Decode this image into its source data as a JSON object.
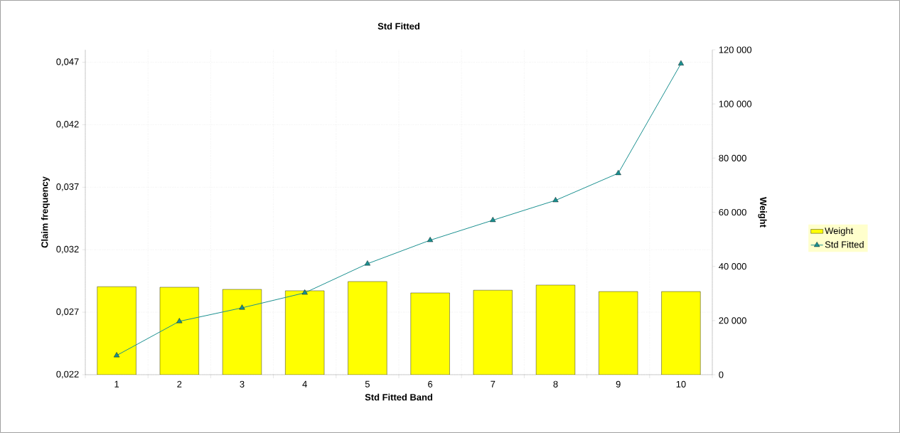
{
  "chart_data": {
    "type": "bar",
    "title": "Std Fitted",
    "xlabel": "Std Fitted Band",
    "ylabel": "Claim frequency",
    "y2label": "Weight",
    "categories": [
      "1",
      "2",
      "3",
      "4",
      "5",
      "6",
      "7",
      "8",
      "9",
      "10"
    ],
    "series": [
      {
        "name": "Weight",
        "axis": "y2",
        "color": "#ffff00",
        "values": [
          32500,
          32300,
          31500,
          31000,
          34400,
          30200,
          31200,
          33100,
          30700,
          30700
        ]
      },
      {
        "name": "Std Fitted",
        "type": "line",
        "color": "#1a9090",
        "marker": "triangle",
        "values": [
          0.02354,
          0.02627,
          0.02735,
          0.02855,
          0.03088,
          0.03276,
          0.03436,
          0.03595,
          0.03812,
          0.04689
        ]
      }
    ],
    "ylim": [
      0.022,
      0.048
    ],
    "yticks": [
      {
        "value": 0.022,
        "label": "0,022"
      },
      {
        "value": 0.027,
        "label": "0,027"
      },
      {
        "value": 0.032,
        "label": "0,032"
      },
      {
        "value": 0.037,
        "label": "0,037"
      },
      {
        "value": 0.042,
        "label": "0,042"
      },
      {
        "value": 0.047,
        "label": "0,047"
      }
    ],
    "y2lim": [
      0,
      120000
    ],
    "y2ticks": [
      0,
      {
        "value": 20000,
        "label": "20 000"
      },
      {
        "value": 40000,
        "label": "40 000"
      },
      {
        "value": 60000,
        "label": "60 000"
      },
      {
        "value": 80000,
        "label": "80 000"
      },
      {
        "value": 100000,
        "label": "100 000"
      },
      {
        "value": 120000,
        "label": "120 000"
      }
    ],
    "grid": true,
    "legend": "right"
  }
}
